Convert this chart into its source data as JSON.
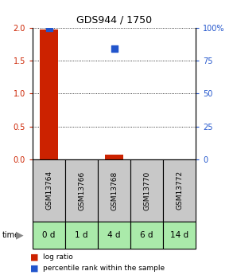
{
  "title": "GDS944 / 1750",
  "samples": [
    "GSM13764",
    "GSM13766",
    "GSM13768",
    "GSM13770",
    "GSM13772"
  ],
  "time_labels": [
    "0 d",
    "1 d",
    "4 d",
    "6 d",
    "14 d"
  ],
  "log_ratio": [
    1.97,
    0.0,
    0.07,
    0.0,
    0.0
  ],
  "percentile_rank": [
    99.5,
    0.0,
    84.0,
    0.0,
    0.0
  ],
  "ylim_left": [
    0,
    2
  ],
  "ylim_right": [
    0,
    100
  ],
  "left_yticks": [
    0,
    0.5,
    1.0,
    1.5,
    2.0
  ],
  "right_yticks": [
    0,
    25,
    50,
    75,
    100
  ],
  "right_yticklabels": [
    "0",
    "25",
    "50",
    "75",
    "100%"
  ],
  "bar_color": "#cc2200",
  "dot_color": "#2255cc",
  "left_tick_color": "#cc2200",
  "right_tick_color": "#2255cc",
  "sample_bg_color": "#c8c8c8",
  "time_bg_color": "#aaeaaa",
  "bar_width": 0.55,
  "dot_size": 28,
  "title_fontsize": 9,
  "tick_fontsize": 7,
  "sample_fontsize": 6.5,
  "time_fontsize": 7.5
}
